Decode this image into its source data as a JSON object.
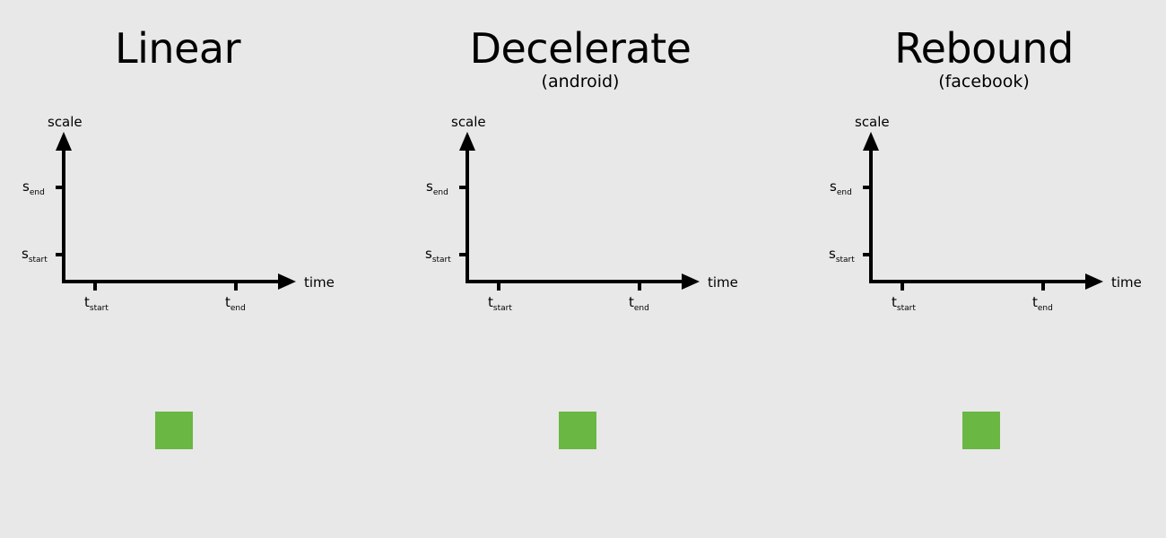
{
  "colors": {
    "background": "#e8e8e8",
    "square": "#6ab744",
    "axis": "#000000"
  },
  "panels": [
    {
      "title": "Linear",
      "subtitle": "",
      "y_axis_label": "scale",
      "x_axis_label": "time",
      "y_ticks": [
        {
          "main": "s",
          "sub": "end"
        },
        {
          "main": "s",
          "sub": "start"
        }
      ],
      "x_ticks": [
        {
          "main": "t",
          "sub": "start"
        },
        {
          "main": "t",
          "sub": "end"
        }
      ]
    },
    {
      "title": "Decelerate",
      "subtitle": "(android)",
      "y_axis_label": "scale",
      "x_axis_label": "time",
      "y_ticks": [
        {
          "main": "s",
          "sub": "end"
        },
        {
          "main": "s",
          "sub": "start"
        }
      ],
      "x_ticks": [
        {
          "main": "t",
          "sub": "start"
        },
        {
          "main": "t",
          "sub": "end"
        }
      ]
    },
    {
      "title": "Rebound",
      "subtitle": "(facebook)",
      "y_axis_label": "scale",
      "x_axis_label": "time",
      "y_ticks": [
        {
          "main": "s",
          "sub": "end"
        },
        {
          "main": "s",
          "sub": "start"
        }
      ],
      "x_ticks": [
        {
          "main": "t",
          "sub": "start"
        },
        {
          "main": "t",
          "sub": "end"
        }
      ]
    }
  ]
}
